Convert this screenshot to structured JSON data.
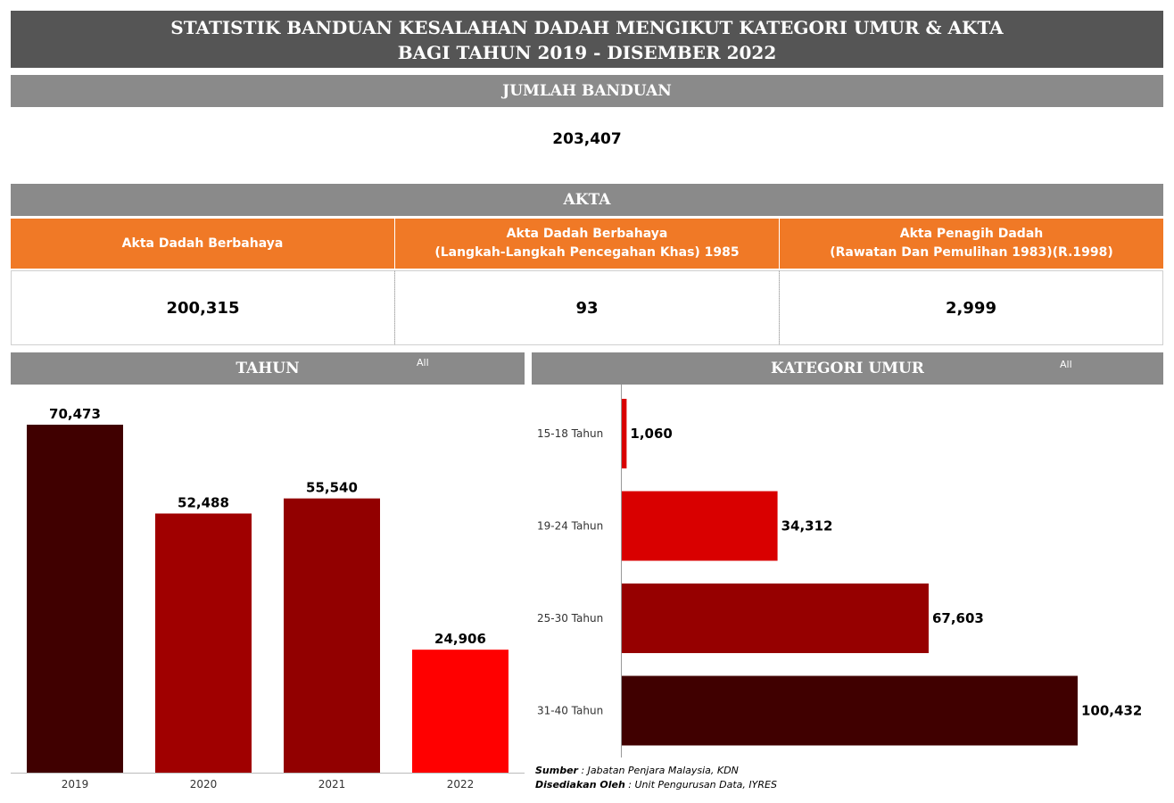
{
  "header": {
    "title_line1": "STATISTIK BANDUAN KESALAHAN DADAH MENGIKUT KATEGORI UMUR & AKTA",
    "title_line2": "BAGI TAHUN 2019 - DISEMBER 2022"
  },
  "jumlah": {
    "label": "JUMLAH BANDUAN",
    "value": "203,407"
  },
  "akta": {
    "label": "AKTA",
    "columns": [
      {
        "line1": "Akta Dadah Berbahaya",
        "line2": "",
        "value": "200,315"
      },
      {
        "line1": "Akta Dadah Berbahaya",
        "line2": "(Langkah-Langkah Pencegahan Khas) 1985",
        "value": "93"
      },
      {
        "line1": "Akta Penagih Dadah",
        "line2": "(Rawatan Dan Pemulihan 1983)(R.1998)",
        "value": "2,999"
      }
    ],
    "header_color": "#f07926"
  },
  "tahun": {
    "label": "TAHUN",
    "filter": "All"
  },
  "umur": {
    "label": "KATEGORI UMUR",
    "filter": "All"
  },
  "chart_data": [
    {
      "type": "bar",
      "orientation": "vertical",
      "categories": [
        "2019",
        "2020",
        "2021",
        "2022"
      ],
      "values": [
        70473,
        52488,
        55540,
        24906
      ],
      "labels": [
        "70,473",
        "52,488",
        "55,540",
        "24,906"
      ],
      "colors": [
        "#400000",
        "#a00000",
        "#920000",
        "#ff0000"
      ],
      "ylim": [
        0,
        70473
      ]
    },
    {
      "type": "bar",
      "orientation": "horizontal",
      "categories": [
        "15-18 Tahun",
        "19-24 Tahun",
        "25-30 Tahun",
        "31-40 Tahun"
      ],
      "values": [
        1060,
        34312,
        67603,
        100432
      ],
      "labels": [
        "1,060",
        "34,312",
        "67,603",
        "100,432"
      ],
      "colors": [
        "#d90000",
        "#d90000",
        "#960000",
        "#400000"
      ],
      "xlim": [
        0,
        100432
      ]
    }
  ],
  "source": {
    "sumber_label": "Sumber",
    "sumber_text": " : Jabatan Penjara Malaysia, KDN",
    "disediakan_label": "Disediakan Oleh",
    "disediakan_text": " : Unit Pengurusan Data, IYRES"
  }
}
